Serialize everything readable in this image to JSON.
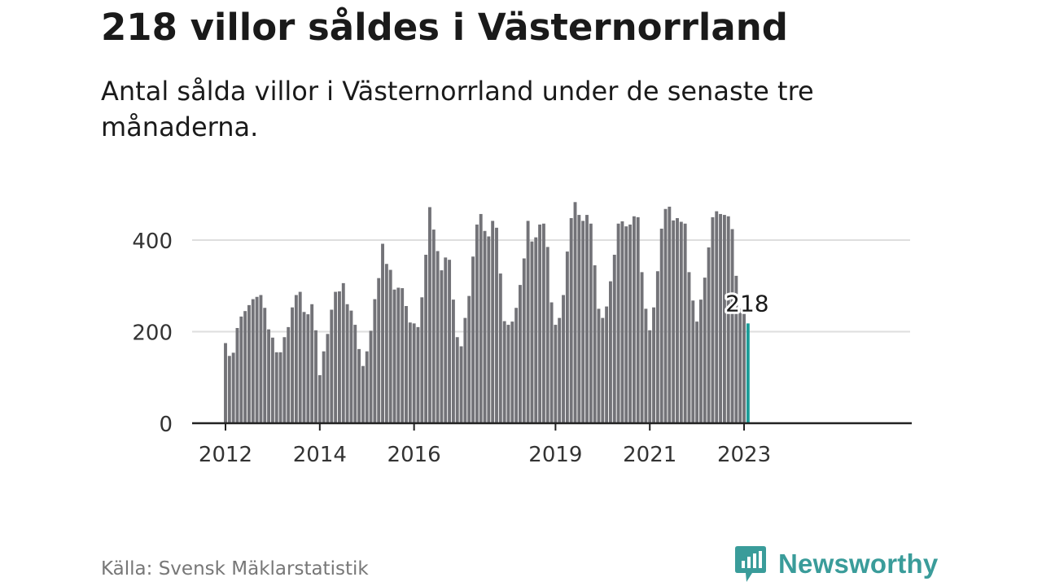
{
  "header": {
    "title": "218 villor såldes i Västernorrland",
    "subtitle": "Antal sålda villor i Västernorrland under de senaste tre månaderna."
  },
  "footer": {
    "source": "Källa: Svensk Mäklarstatistik",
    "brand": "Newsworthy",
    "brand_icon": "newsworthy-logo-icon"
  },
  "colors": {
    "bar": "#737378",
    "highlight": "#1b9c98",
    "grid": "#dedede",
    "axis": "#222222",
    "brand": "#3a9c9a"
  },
  "chart_data": {
    "type": "bar",
    "x_start": "2012-01",
    "x_step": "month",
    "ylim": [
      0,
      500
    ],
    "yticks": [
      0,
      200,
      400
    ],
    "xticks": [
      "2012",
      "2014",
      "2016",
      "2019",
      "2021",
      "2023"
    ],
    "grid": true,
    "highlight": {
      "label": "218",
      "value": 218,
      "month": "2023-02"
    },
    "values": [
      175,
      147,
      154,
      208,
      233,
      245,
      258,
      271,
      276,
      280,
      252,
      205,
      187,
      155,
      155,
      188,
      210,
      253,
      280,
      287,
      243,
      238,
      260,
      203,
      105,
      157,
      195,
      248,
      287,
      288,
      306,
      260,
      246,
      215,
      162,
      125,
      157,
      202,
      271,
      317,
      392,
      348,
      335,
      292,
      296,
      295,
      256,
      220,
      218,
      210,
      275,
      368,
      472,
      423,
      376,
      334,
      362,
      357,
      270,
      188,
      168,
      230,
      278,
      364,
      434,
      457,
      420,
      408,
      442,
      427,
      327,
      223,
      215,
      222,
      252,
      302,
      360,
      442,
      397,
      406,
      434,
      436,
      385,
      264,
      215,
      230,
      280,
      375,
      448,
      483,
      455,
      442,
      455,
      436,
      345,
      250,
      230,
      255,
      310,
      368,
      436,
      441,
      430,
      434,
      452,
      450,
      330,
      250,
      203,
      253,
      332,
      425,
      468,
      473,
      443,
      448,
      440,
      436,
      330,
      268,
      222,
      270,
      318,
      384,
      450,
      463,
      457,
      455,
      452,
      424,
      322,
      250,
      245,
      218
    ]
  }
}
